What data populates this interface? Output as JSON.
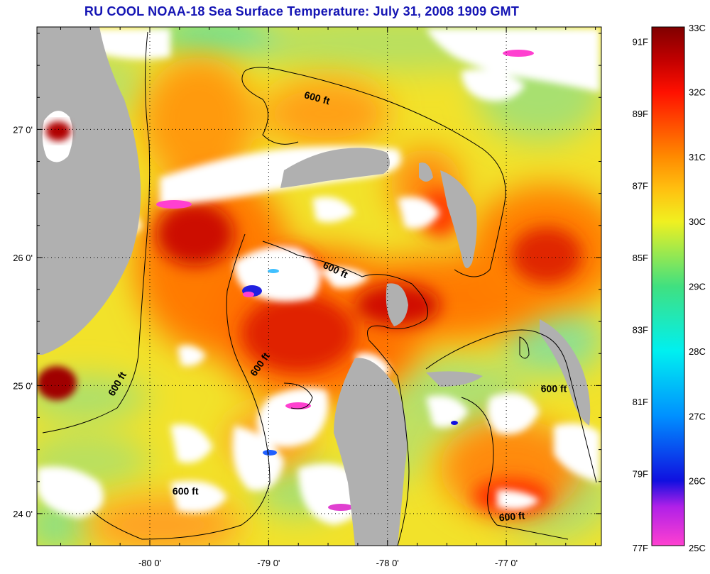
{
  "title": "RU COOL  NOAA-18  Sea Surface Temperature:  July 31, 2008 1909 GMT",
  "map": {
    "lon_range": [
      -80.95,
      -76.2
    ],
    "lat_range": [
      23.75,
      27.8
    ],
    "lon_ticks": [
      {
        "value": -80,
        "label": "-80 0'"
      },
      {
        "value": -79,
        "label": "-79 0'"
      },
      {
        "value": -78,
        "label": "-78 0'"
      },
      {
        "value": -77,
        "label": "-77 0'"
      }
    ],
    "lat_ticks": [
      {
        "value": 27,
        "label": "27 0'"
      },
      {
        "value": 26,
        "label": "26 0'"
      },
      {
        "value": 25,
        "label": "25 0'"
      },
      {
        "value": 24,
        "label": "24 0'"
      }
    ],
    "contour_labels": [
      {
        "text": "600 ft",
        "lon": -78.6,
        "lat": 27.22
      },
      {
        "text": "600 ft",
        "lon": -78.45,
        "lat": 25.88
      },
      {
        "text": "600 ft",
        "lon": -79.05,
        "lat": 25.15
      },
      {
        "text": "600 ft",
        "lon": -80.25,
        "lat": 25.0
      },
      {
        "text": "600 ft",
        "lon": -76.6,
        "lat": 24.95
      },
      {
        "text": "600 ft",
        "lon": -79.7,
        "lat": 24.15
      },
      {
        "text": "600 ft",
        "lon": -76.95,
        "lat": 23.95
      }
    ]
  },
  "colorbar": {
    "min_c": 25,
    "max_c": 33,
    "celsius_labels": [
      "33C",
      "32C",
      "31C",
      "30C",
      "29C",
      "28C",
      "27C",
      "26C",
      "25C"
    ],
    "fahrenheit_labels": [
      "91F",
      "89F",
      "87F",
      "85F",
      "83F",
      "81F",
      "79F",
      "77F"
    ],
    "stops": [
      {
        "c": 25.0,
        "color": "#ff40d0"
      },
      {
        "c": 25.6,
        "color": "#b020e8"
      },
      {
        "c": 26.0,
        "color": "#1010e0"
      },
      {
        "c": 27.0,
        "color": "#0090ff"
      },
      {
        "c": 28.0,
        "color": "#00f0f0"
      },
      {
        "c": 29.0,
        "color": "#40e080"
      },
      {
        "c": 30.0,
        "color": "#f0f020"
      },
      {
        "c": 30.5,
        "color": "#ffc010"
      },
      {
        "c": 31.0,
        "color": "#ff8a00"
      },
      {
        "c": 32.0,
        "color": "#ff1000"
      },
      {
        "c": 32.5,
        "color": "#c00000"
      },
      {
        "c": 33.0,
        "color": "#800000"
      }
    ]
  },
  "colors": {
    "title": "#1414b4",
    "land": "#b0b0b0",
    "cloud": "#ffffff"
  }
}
